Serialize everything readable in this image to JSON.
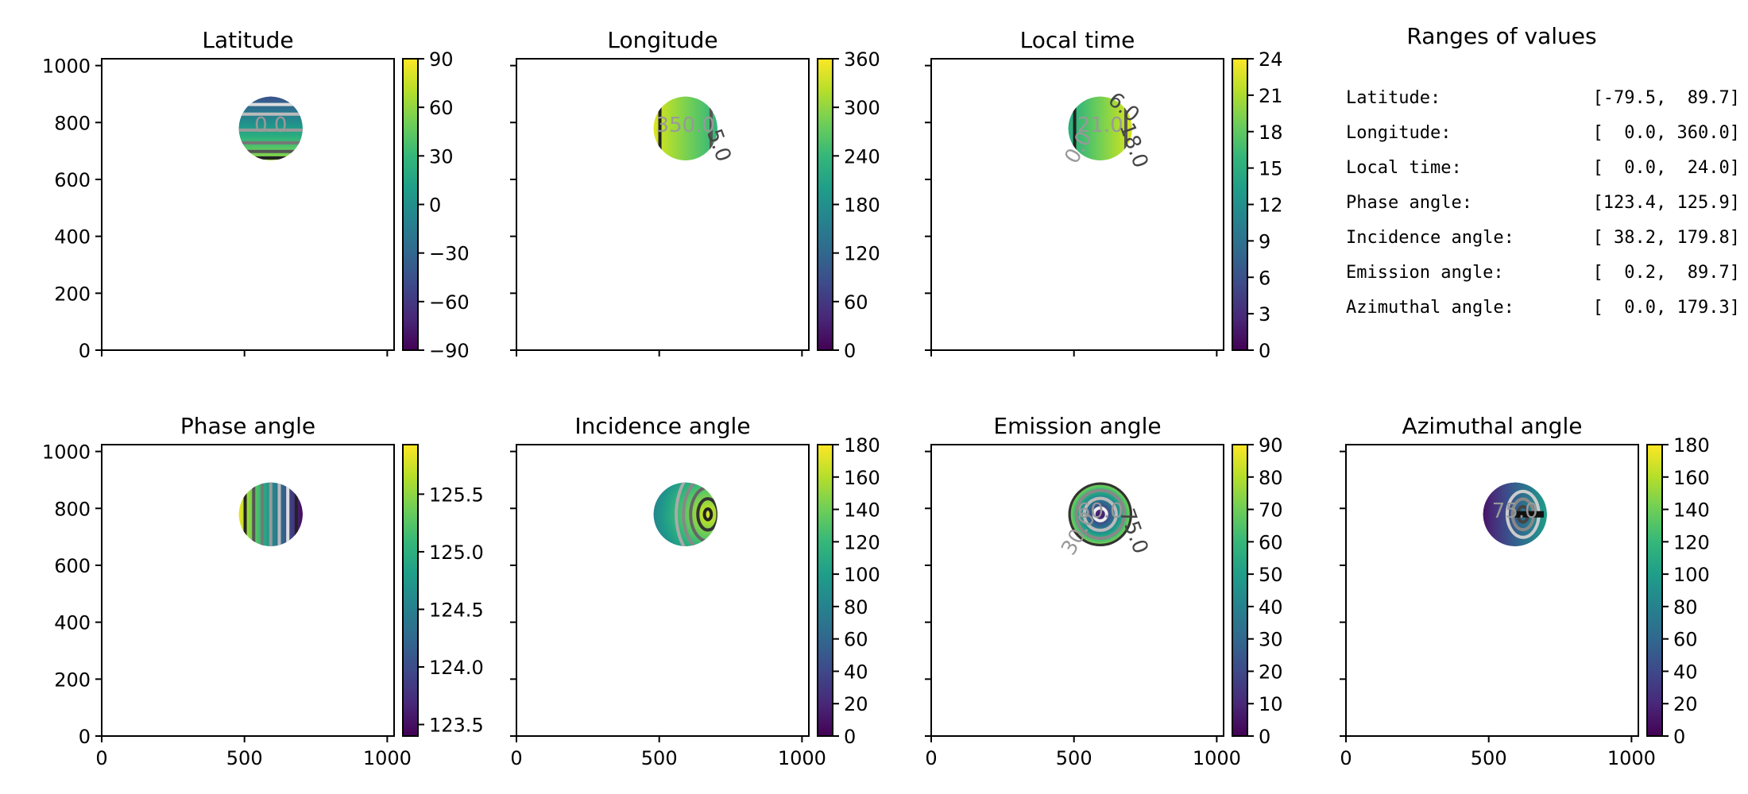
{
  "chart_data": [
    {
      "type": "heatmap",
      "title": "Latitude",
      "xlim": [
        0,
        1024
      ],
      "ylim": [
        0,
        1024
      ],
      "xticks": [
        0,
        500,
        1000
      ],
      "yticks": [
        0,
        200,
        400,
        600,
        800,
        1000
      ],
      "show_xticklabels": false,
      "show_yticklabels": true,
      "colormap": "viridis",
      "clim": [
        -90,
        90
      ],
      "cbar_ticks": [
        90,
        60,
        30,
        0,
        -30,
        -60,
        -90
      ],
      "cbar_tick_labels": [
        "90",
        "60",
        "30",
        "0",
        "−30",
        "−60",
        "−90"
      ],
      "disk": {
        "cx": 592,
        "cy": 779,
        "r": 112
      },
      "gradient": "vertical",
      "gradient_range": [
        0.25,
        0.85
      ],
      "contour_labels": [
        "0.0"
      ]
    },
    {
      "type": "heatmap",
      "title": "Longitude",
      "xlim": [
        0,
        1024
      ],
      "ylim": [
        0,
        1024
      ],
      "xticks": [
        0,
        500,
        1000
      ],
      "yticks": [
        0,
        200,
        400,
        600,
        800,
        1000
      ],
      "show_xticklabels": false,
      "show_yticklabels": false,
      "colormap": "viridis",
      "clim": [
        0,
        360
      ],
      "cbar_ticks": [
        360,
        300,
        240,
        180,
        120,
        60,
        0
      ],
      "cbar_tick_labels": [
        "360",
        "300",
        "240",
        "180",
        "120",
        "60",
        "0"
      ],
      "disk": {
        "cx": 592,
        "cy": 779,
        "r": 112
      },
      "gradient": "horizontal",
      "gradient_range": [
        0.95,
        0.65
      ],
      "contour_labels": [
        "350.0",
        "5.0"
      ]
    },
    {
      "type": "heatmap",
      "title": "Local time",
      "xlim": [
        0,
        1024
      ],
      "ylim": [
        0,
        1024
      ],
      "xticks": [
        0,
        500,
        1000
      ],
      "yticks": [
        0,
        200,
        400,
        600,
        800,
        1000
      ],
      "show_xticklabels": false,
      "show_yticklabels": false,
      "colormap": "viridis",
      "clim": [
        0,
        24
      ],
      "cbar_ticks": [
        24,
        21,
        18,
        15,
        12,
        9,
        6,
        3,
        0
      ],
      "cbar_tick_labels": [
        "24",
        "21",
        "18",
        "15",
        "12",
        "9",
        "6",
        "3",
        "0"
      ],
      "disk": {
        "cx": 592,
        "cy": 779,
        "r": 112
      },
      "gradient": "horizontal",
      "gradient_range": [
        0.62,
        0.95
      ],
      "contour_labels": [
        "21.0",
        "18.0",
        "0.0",
        "6.0"
      ]
    },
    {
      "type": "heatmap",
      "title": "Phase angle",
      "xlim": [
        0,
        1024
      ],
      "ylim": [
        0,
        1024
      ],
      "xticks": [
        0,
        500,
        1000
      ],
      "yticks": [
        0,
        200,
        400,
        600,
        800,
        1000
      ],
      "show_xticklabels": true,
      "show_yticklabels": true,
      "colormap": "viridis",
      "clim": [
        123.4,
        125.93
      ],
      "cbar_ticks": [
        125.5,
        125.0,
        124.5,
        124.0,
        123.5
      ],
      "cbar_tick_labels": [
        "125.5",
        "125.0",
        "124.5",
        "124.0",
        "123.5"
      ],
      "disk": {
        "cx": 592,
        "cy": 779,
        "r": 112
      },
      "gradient": "horizontal",
      "gradient_range": [
        0.98,
        0.02
      ],
      "contour_labels": []
    },
    {
      "type": "heatmap",
      "title": "Incidence angle",
      "xlim": [
        0,
        1024
      ],
      "ylim": [
        0,
        1024
      ],
      "xticks": [
        0,
        500,
        1000
      ],
      "yticks": [
        0,
        200,
        400,
        600,
        800,
        1000
      ],
      "show_xticklabels": true,
      "show_yticklabels": false,
      "colormap": "viridis",
      "clim": [
        0,
        180
      ],
      "cbar_ticks": [
        180,
        160,
        140,
        120,
        100,
        80,
        60,
        40,
        20,
        0
      ],
      "cbar_tick_labels": [
        "180",
        "160",
        "140",
        "120",
        "100",
        "80",
        "60",
        "40",
        "20",
        "0"
      ],
      "disk": {
        "cx": 592,
        "cy": 779,
        "r": 112
      },
      "gradient": "radial-offset",
      "gradient_range": [
        0.95,
        0.4
      ],
      "contour_labels": []
    },
    {
      "type": "heatmap",
      "title": "Emission angle",
      "xlim": [
        0,
        1024
      ],
      "ylim": [
        0,
        1024
      ],
      "xticks": [
        0,
        500,
        1000
      ],
      "yticks": [
        0,
        200,
        400,
        600,
        800,
        1000
      ],
      "show_xticklabels": true,
      "show_yticklabels": false,
      "colormap": "viridis",
      "clim": [
        0,
        90
      ],
      "cbar_ticks": [
        90,
        80,
        70,
        60,
        50,
        40,
        30,
        20,
        10,
        0
      ],
      "cbar_tick_labels": [
        "90",
        "80",
        "70",
        "60",
        "50",
        "40",
        "30",
        "20",
        "10",
        "0"
      ],
      "disk": {
        "cx": 592,
        "cy": 779,
        "r": 112
      },
      "gradient": "radial",
      "gradient_range": [
        0.02,
        0.85
      ],
      "contour_labels": [
        "60.0",
        "75.0",
        "30.0"
      ]
    },
    {
      "type": "heatmap",
      "title": "Azimuthal angle",
      "xlim": [
        0,
        1024
      ],
      "ylim": [
        0,
        1024
      ],
      "xticks": [
        0,
        500,
        1000
      ],
      "yticks": [
        0,
        200,
        400,
        600,
        800,
        1000
      ],
      "show_xticklabels": true,
      "show_yticklabels": false,
      "colormap": "viridis",
      "clim": [
        0,
        180
      ],
      "cbar_ticks": [
        180,
        160,
        140,
        120,
        100,
        80,
        60,
        40,
        20,
        0
      ],
      "cbar_tick_labels": [
        "180",
        "160",
        "140",
        "120",
        "100",
        "80",
        "60",
        "40",
        "20",
        "0"
      ],
      "disk": {
        "cx": 592,
        "cy": 779,
        "r": 112
      },
      "gradient": "horizontal",
      "gradient_range": [
        0.05,
        0.55
      ],
      "contour_labels": [
        "75.0"
      ]
    }
  ],
  "ranges_panel": {
    "title": "Ranges of values",
    "rows": [
      {
        "label": "Latitude:",
        "range": "[-79.5,  89.7]"
      },
      {
        "label": "Longitude:",
        "range": "[  0.0, 360.0]"
      },
      {
        "label": "Local time:",
        "range": "[  0.0,  24.0]"
      },
      {
        "label": "Phase angle:",
        "range": "[123.4, 125.9]"
      },
      {
        "label": "Incidence angle:",
        "range": "[ 38.2, 179.8]"
      },
      {
        "label": "Emission angle:",
        "range": "[  0.2,  89.7]"
      },
      {
        "label": "Azimuthal angle:",
        "range": "[  0.0, 179.3]"
      }
    ]
  }
}
